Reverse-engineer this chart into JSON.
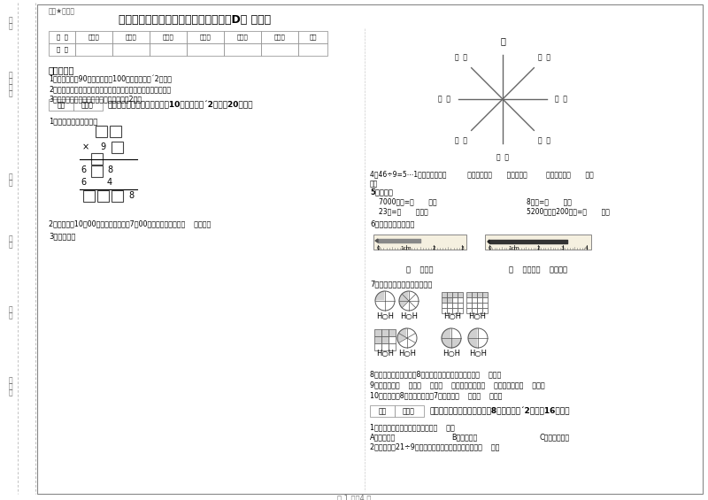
{
  "title": "赣南版三年级数学下学期开学考试试题D卷 含答案",
  "subtitle": "幼密★启用前",
  "bg_color": "#ffffff",
  "table_headers": [
    "题  号",
    "填空题",
    "选择题",
    "判断题",
    "计算题",
    "综合题",
    "应用题",
    "总分"
  ],
  "table_row0": "得  分",
  "notice_title": "考试须知：",
  "notice1": "1、考试时间：90分钟，满分为100分（含卷面分´2分）。",
  "notice2": "2、请首先按要求在试卷的指定位置填写您的姓名、班级、学号。",
  "notice3": "3、不要在试卷上乱写乱画，卷面不整洁才2分。",
  "sec1_title": "一、用心思考，正确填空（入10小题，每题´2分，入20分）。",
  "q1_label": "1、在里填上适当的数。",
  "q2_label": "2、小林晚上10：00睡觉，第二天早上7：00起床，他一共睡了（    ）小时。",
  "q3_label": "3、填一填。",
  "compass_N": "北",
  "q4_label": "4、46÷9=5⋯1中，被除数是（          ）、除数是（       ）、商是（         ）、余数是（       ）。",
  "q5_label": "5、换算。",
  "q5a": "7000千克=（       ）吐",
  "q5b": "8千克=（       ）克",
  "q5c": "23吐=（       ）千克",
  "q5d": "5200千克－200千克=（       ）吐",
  "q6_label": "6、量出钉子的长度。",
  "ruler1_label": "（    ）毫米",
  "ruler2_label": "（    ）厘米（    ）毫米。",
  "q7_label": "7、看图写分数，并比较大小。",
  "q8_label": "8、小明从一楼到三楼用8秒，照这样他从一楼到五楼用（    ）秒。",
  "q9_label": "9、你出生于（    ）年（    ）月（    ）日，那一年是（    ）年，全年有（    ）天。",
  "q10_label": "10、时针在和8之间，分针指呴7，这时是（    ）时（    ）分。",
  "sec2_title": "二、反复比较，慎重选择（儗8小题，每题´2分，入16分）。",
  "mc1_label": "1、下面现象中属于平移现象的是（    ）。",
  "mc1a": "A、开关抽屉",
  "mc1b": "B、打开瓶盖",
  "mc1c": "C、转动的风车",
  "mc2_label": "2、要使「口21÷9」的商是三位数，「口」里只能填（    ）。",
  "page_label": "第 1 页共4 页",
  "dotted_color": "#aaaaaa",
  "border_color": "#888888",
  "text_color": "#222222"
}
